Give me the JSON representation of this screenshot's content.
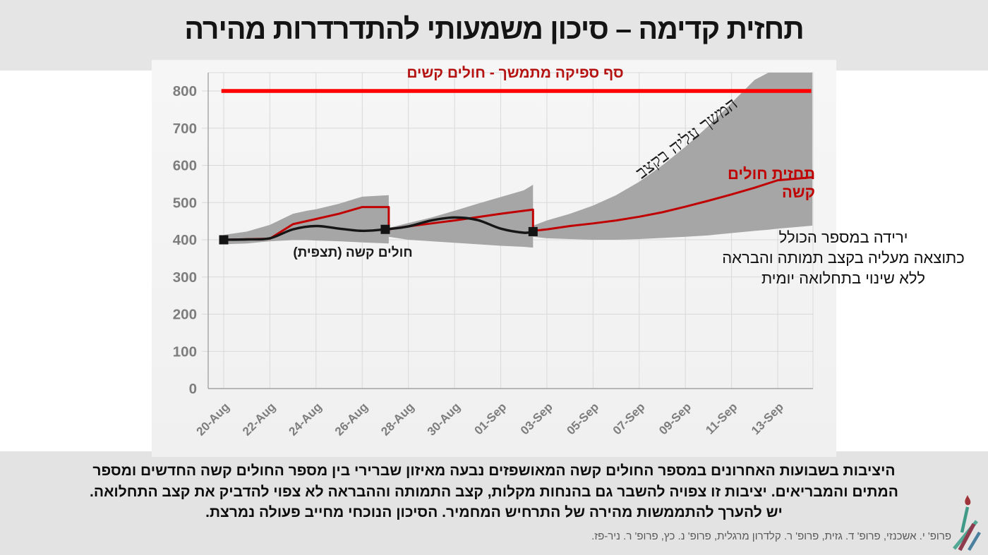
{
  "slide": {
    "title": "תחזית קדימה – סיכון משמעותי להתדרדרות מהירה",
    "footer_lines": [
      "היציבות בשבועות האחרונים במספר החולים קשה המאושפזים נבעה מאיזון שברירי בין  מספר החולים קשה החדשים ומספר",
      "המתים והמבריאים.  יציבות זו צפויה להשבר גם בהנחות מקלות, קצב התמותה וההבראה לא צפוי להדביק את קצב התחלואה.",
      "יש להערך להתממשות מהירה של התרחיש המחמיר.  הסיכון הנוכחי מחייב פעולה נמרצת."
    ],
    "credits": "פרופ' י. אשכנזי, פרופ' ד. גזית, פרופ' ר. קלדרון מרגלית, פרופ' נ. כץ, פרופ' ר. ניר-פז.",
    "logo_name": "hebrew-university-logo"
  },
  "annotations": {
    "threshold_label": "סף ספיקה מתמשך - חולים קשים",
    "rate_note": "המשך עליה בקצב",
    "forecast_label": "תחזית חולים קשה",
    "observed_label": "חולים קשה  (תצפית)",
    "side_note_lines": [
      "ירידה במספר הכולל",
      "כתוצאה מעליה בקצב תמותה והבראה",
      "ללא שינוי בתחלואה יומית"
    ]
  },
  "colors": {
    "threshold_red": "#fe0000",
    "forecast_red": "#c00000",
    "observed_black": "#161616",
    "band_gray": "#a6a6a6",
    "grid_gray": "#d9d9d9",
    "axis_gray": "#a3a3a3",
    "tick_label_gray": "#7d7d7d"
  },
  "chart_data": {
    "type": "line",
    "description": "Severe-patient forecast with uncertainty bands, observed series and capacity threshold",
    "x_unit": "days from 20-Aug-2020",
    "x_tick_labels": [
      "20-Aug",
      "22-Aug",
      "24-Aug",
      "26-Aug",
      "28-Aug",
      "30-Aug",
      "01-Sep",
      "03-Sep",
      "05-Sep",
      "07-Sep",
      "09-Sep",
      "11-Sep",
      "13-Sep"
    ],
    "x_tick_days": [
      0,
      2,
      4,
      6,
      8,
      10,
      12,
      14,
      16,
      18,
      20,
      22,
      24
    ],
    "x_domain": [
      -0.7,
      25.5
    ],
    "ylim": [
      0,
      850
    ],
    "y_ticks": [
      0,
      100,
      200,
      300,
      400,
      500,
      600,
      700,
      800
    ],
    "grid": true,
    "legend_position": "none",
    "threshold": {
      "value": 800,
      "x_start": -0.1,
      "x_end": 25.45
    },
    "observed": {
      "name": "חולים קשה (תצפית)",
      "x": [
        0,
        1,
        2,
        3,
        4,
        5,
        6,
        7,
        8,
        9,
        10,
        11,
        12,
        13,
        13.4
      ],
      "y": [
        400,
        401,
        404,
        428,
        437,
        430,
        424,
        428,
        436,
        452,
        460,
        453,
        430,
        419,
        422
      ]
    },
    "anchor_markers": [
      [
        0,
        400
      ],
      [
        7.0,
        428
      ],
      [
        13.4,
        422
      ]
    ],
    "forecast_path": {
      "name": "תחזית חולים קשה",
      "x": [
        0,
        2,
        3,
        4,
        5,
        6,
        7.15,
        7.15,
        8,
        9,
        10,
        11,
        12,
        13,
        13.4,
        13.4,
        14,
        15,
        16,
        17,
        18,
        19,
        20,
        21,
        22,
        23,
        24,
        25.5
      ],
      "y": [
        400,
        403,
        442,
        456,
        470,
        488,
        488,
        428,
        436,
        444,
        452,
        461,
        470,
        478,
        481,
        424,
        428,
        437,
        444,
        452,
        462,
        474,
        489,
        505,
        522,
        540,
        560,
        568
      ]
    },
    "band_segments": [
      {
        "x": [
          0,
          1,
          2,
          3,
          3.6,
          4,
          5,
          6,
          7.15
        ],
        "upper": [
          413,
          422,
          440,
          470,
          478,
          482,
          497,
          516,
          520
        ],
        "lower": [
          388,
          390,
          396,
          399,
          399,
          398,
          396,
          393,
          390
        ]
      },
      {
        "x": [
          7.15,
          8,
          9,
          10,
          11,
          12,
          13,
          13.4
        ],
        "upper": [
          432,
          445,
          460,
          478,
          497,
          515,
          533,
          548
        ],
        "lower": [
          408,
          400,
          396,
          392,
          388,
          384,
          381,
          379
        ]
      },
      {
        "x": [
          13.4,
          14,
          15,
          16,
          17,
          18,
          19,
          20,
          21,
          22,
          23,
          23.6,
          24,
          25.5
        ],
        "upper": [
          438,
          452,
          470,
          492,
          520,
          556,
          600,
          650,
          706,
          768,
          830,
          852,
          852,
          852
        ],
        "lower": [
          408,
          404,
          402,
          400,
          400,
          402,
          405,
          408,
          412,
          418,
          424,
          427,
          430,
          438
        ]
      }
    ]
  }
}
